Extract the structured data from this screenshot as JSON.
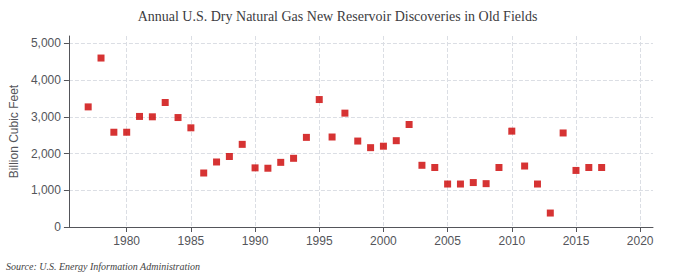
{
  "chart_data": {
    "type": "scatter",
    "title": "Annual U.S. Dry Natural Gas New Reservoir Discoveries in Old Fields",
    "ylabel": "Billion Cubic Feet",
    "annotations": [
      "Source: U.S. Energy Information Administration"
    ],
    "x": [
      1977,
      1978,
      1979,
      1980,
      1981,
      1982,
      1983,
      1984,
      1985,
      1986,
      1987,
      1988,
      1989,
      1990,
      1991,
      1992,
      1993,
      1994,
      1995,
      1996,
      1997,
      1998,
      1999,
      2000,
      2001,
      2002,
      2003,
      2004,
      2005,
      2006,
      2007,
      2008,
      2009,
      2010,
      2011,
      2012,
      2013,
      2014,
      2015,
      2016,
      2017
    ],
    "values": [
      3270,
      4600,
      2580,
      2580,
      3010,
      3000,
      3390,
      2980,
      2700,
      1470,
      1770,
      1920,
      2250,
      1610,
      1600,
      1760,
      1870,
      2440,
      3470,
      2450,
      3100,
      2340,
      2160,
      2200,
      2350,
      2790,
      1680,
      1620,
      1170,
      1170,
      1210,
      1180,
      1620,
      2610,
      1660,
      1170,
      380,
      2560,
      1540,
      1620,
      1620
    ],
    "color": "#cc0000",
    "marker": "square",
    "xlim": [
      1975.5,
      2021
    ],
    "xticks": [
      1980,
      1985,
      1990,
      1995,
      2000,
      2005,
      2010,
      2015,
      2020
    ],
    "ylim": [
      0,
      5200
    ],
    "yticks": [
      0,
      {
        "value": 1000,
        "label": "1,000"
      },
      {
        "value": 2000,
        "label": "2,000"
      },
      {
        "value": 3000,
        "label": "3,000"
      },
      {
        "value": 4000,
        "label": "4,000"
      },
      {
        "value": 5000,
        "label": "5,000"
      }
    ],
    "grid": true
  }
}
